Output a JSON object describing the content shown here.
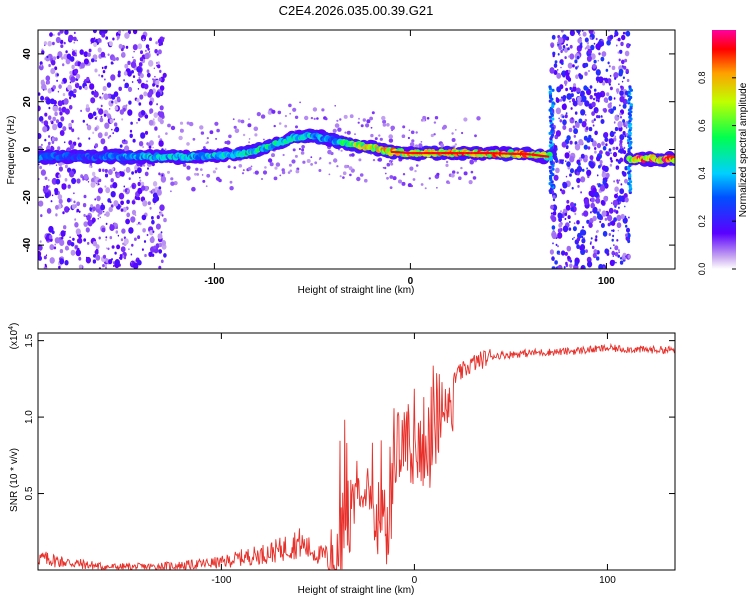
{
  "title": "C2E4.2026.035.00.39.G21",
  "colorbar": {
    "label": "Normalized spectral amplitude",
    "ticks": [
      "0.0",
      "0.2",
      "0.4",
      "0.6",
      "0.8"
    ],
    "tick_values": [
      0.0,
      0.2,
      0.4,
      0.6,
      0.8
    ],
    "range": [
      0,
      1
    ]
  },
  "chart_data": [
    {
      "type": "heatmap",
      "name": "spectrogram",
      "xlabel": "Height of straight line (km)",
      "ylabel": "Frequency (Hz)",
      "xlim": [
        -190,
        135
      ],
      "ylim": [
        -50,
        50
      ],
      "xticks": [
        "-100",
        "0",
        "100"
      ],
      "xtick_values": [
        -100,
        0,
        100
      ],
      "yticks": [
        "-40",
        "-20",
        "0",
        "20",
        "40"
      ],
      "ytick_values": [
        -40,
        -20,
        0,
        20,
        40
      ],
      "ridge": {
        "x": [
          -190,
          -170,
          -150,
          -130,
          -110,
          -90,
          -80,
          -70,
          -60,
          -50,
          -40,
          -30,
          -20,
          -10,
          0,
          20,
          40,
          60,
          65,
          70,
          72,
          110,
          115,
          120,
          135
        ],
        "frequency": [
          -3,
          -3,
          -3,
          -3,
          -3,
          -2,
          -1,
          2,
          5,
          6,
          4,
          2,
          1,
          -1,
          -1.5,
          -1.5,
          -1.5,
          -2,
          -2.5,
          -3,
          -3,
          -4,
          -4,
          -4,
          -4
        ],
        "amplitude": [
          0.35,
          0.3,
          0.35,
          0.45,
          0.45,
          0.5,
          0.55,
          0.5,
          0.5,
          0.45,
          0.35,
          0.7,
          0.75,
          0.8,
          0.8,
          0.85,
          0.9,
          0.9,
          0.85,
          0.6,
          0.5,
          0.5,
          0.9,
          0.95,
          0.95
        ]
      },
      "noise_regions": [
        [
          -190,
          -125
        ],
        [
          72,
          112
        ]
      ]
    },
    {
      "type": "line",
      "name": "snr",
      "xlabel": "Height of straight line (km)",
      "ylabel": "SNR (10 * v/v)",
      "scale_note_base": "(x10",
      "scale_note_exp": "4",
      "scale_note_close": ")",
      "color": "#e8302a",
      "xlim": [
        -195,
        135
      ],
      "ylim": [
        0,
        1.55
      ],
      "xticks": [
        "-100",
        "0",
        "100"
      ],
      "xtick_values": [
        -100,
        0,
        100
      ],
      "yticks": [
        "0.5",
        "1.0",
        "1.5"
      ],
      "ytick_values": [
        0.5,
        1.0,
        1.5
      ],
      "x": [
        -195,
        -180,
        -160,
        -140,
        -120,
        -100,
        -90,
        -80,
        -70,
        -60,
        -50,
        -45,
        -42,
        -40,
        -38,
        -35,
        -30,
        -25,
        -20,
        -15,
        -10,
        -5,
        0,
        5,
        10,
        15,
        20,
        30,
        40,
        60,
        80,
        100,
        120,
        135
      ],
      "y": [
        0.08,
        0.05,
        0.02,
        0.02,
        0.03,
        0.05,
        0.08,
        0.1,
        0.13,
        0.18,
        0.1,
        0.1,
        0.12,
        0.25,
        0.5,
        0.6,
        0.6,
        0.65,
        0.6,
        0.55,
        0.75,
        0.85,
        0.9,
        0.95,
        1.0,
        1.1,
        1.25,
        1.35,
        1.4,
        1.42,
        1.43,
        1.45,
        1.44,
        1.44
      ]
    }
  ]
}
